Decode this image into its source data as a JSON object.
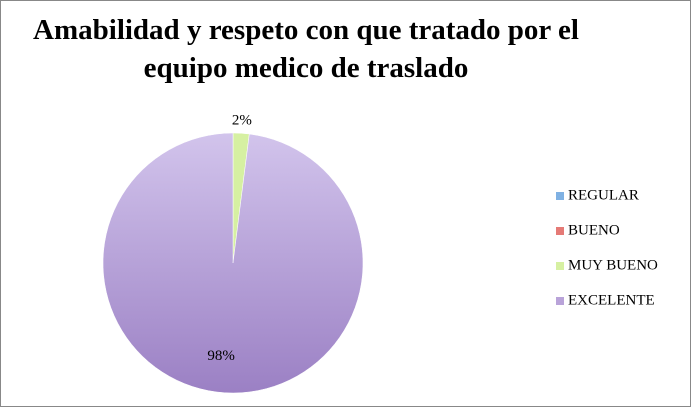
{
  "chart_data": {
    "type": "pie",
    "title": "Amabilidad y respeto con que tratado por el equipo medico de traslado",
    "categories": [
      "REGULAR",
      "BUENO",
      "MUY BUENO",
      "EXCELENTE"
    ],
    "values": [
      0,
      0,
      2,
      98
    ],
    "value_labels": [
      null,
      null,
      "2%",
      "98%"
    ],
    "colors": [
      "#7fb1e3",
      "#e57a76",
      "#d6f0a2",
      "#b9a3d9"
    ],
    "legend": "right"
  }
}
